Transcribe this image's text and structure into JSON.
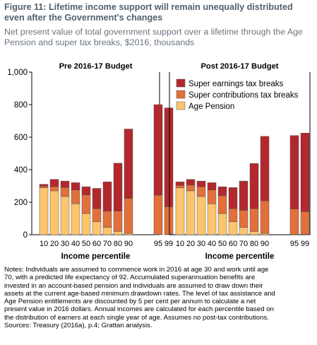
{
  "title": "Figure 11: Lifetime income support will remain unequally distributed even after the Government's changes",
  "subtitle": "Net present value of total government support over a lifetime through the Age Pension and super tax breaks, $2016, thousands",
  "chart_data": {
    "type": "bar",
    "stacked": true,
    "y_ticks": [
      "0",
      "200",
      "400",
      "600",
      "800",
      "1,000"
    ],
    "ylim": [
      0,
      1000
    ],
    "grid": false,
    "legend_position": "top-right",
    "colors": {
      "Super earnings tax breaks": "#b3282d",
      "Super contributions tax breaks": "#e2703a",
      "Age Pension": "#fdc46b"
    },
    "panels": [
      {
        "title": "Pre 2016-17 Budget",
        "xlabel": "Income percentile",
        "categories": [
          "10",
          "20",
          "30",
          "40",
          "50",
          "60",
          "70",
          "80",
          "90",
          "95",
          "99"
        ],
        "series": [
          {
            "name": "Age Pension",
            "values": [
              288,
              270,
              235,
              190,
              130,
              80,
              45,
              20,
              8,
              3,
              2
            ]
          },
          {
            "name": "Super contributions tax breaks",
            "values": [
              10,
              25,
              55,
              85,
              115,
              80,
              100,
              125,
              215,
              240,
              170
            ]
          },
          {
            "name": "Super earnings tax breaks",
            "values": [
              12,
              45,
              40,
              45,
              50,
              125,
              180,
              295,
              427,
              557,
              608
            ]
          }
        ]
      },
      {
        "title": "Post 2016-17 Budget",
        "xlabel": "Income percentile",
        "categories": [
          "10",
          "20",
          "30",
          "40",
          "50",
          "60",
          "70",
          "80",
          "90",
          "95",
          "99"
        ],
        "series": [
          {
            "name": "Age Pension",
            "values": [
              288,
              270,
              235,
              190,
              130,
              80,
              45,
              20,
              8,
              3,
              2
            ]
          },
          {
            "name": "Super contributions tax breaks",
            "values": [
              15,
              35,
              60,
              85,
              110,
              80,
              105,
              140,
              200,
              155,
              140
            ]
          },
          {
            "name": "Super earnings tax breaks",
            "values": [
              22,
              35,
              35,
              45,
              55,
              130,
              180,
              278,
              397,
              452,
              483
            ]
          }
        ]
      }
    ]
  },
  "notes": [
    "Notes: Individuals are assumed to commence work in 2016 at age 30 and work until age",
    "70, with a predicted life expectancy of 92. Accumulated superannuation benefits are",
    "invested in an account-based pension and individuals are assumed to draw down their",
    "assets at the current age-based minimum drawdown rates. The level of tax assistance and",
    "Age Pension entitlements are discounted by 5 per cent per annum to calculate a net",
    "present value in 2016 dollars. Annual incomes are calculated for each percentile based on",
    "the distribution of earners at each single year of age. Assumes no post-tax contributions.",
    "Sources: Treasury (2016a), p.4; Grattan analysis."
  ]
}
